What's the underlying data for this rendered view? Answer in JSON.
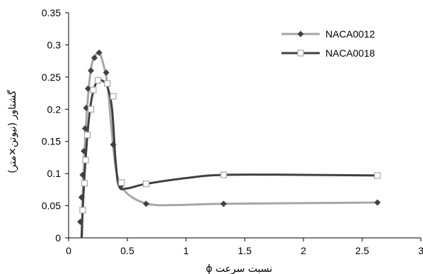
{
  "chart_data": {
    "type": "line",
    "title": "",
    "xlabel": "نسبت سرعت ϕ",
    "ylabel": "گشتاور (نیوتن×متر)",
    "xlim": [
      0,
      3
    ],
    "ylim": [
      0,
      0.35
    ],
    "x_ticks": [
      "0",
      "0.5",
      "1",
      "1.5",
      "2",
      "2.5",
      "3"
    ],
    "y_ticks": [
      "0",
      "0.05",
      "0.1",
      "0.15",
      "0.2",
      "0.25",
      "0.3",
      "0.35"
    ],
    "grid": false,
    "legend_position": "top-right",
    "series": [
      {
        "name": "NACA0012",
        "color": "#a6a6a6",
        "marker": "filled-diamond",
        "marker_color": "#404040",
        "points": [
          [
            0.1,
            0.025
          ],
          [
            0.11,
            0.063
          ],
          [
            0.12,
            0.098
          ],
          [
            0.13,
            0.135
          ],
          [
            0.14,
            0.17
          ],
          [
            0.15,
            0.202
          ],
          [
            0.165,
            0.232
          ],
          [
            0.19,
            0.26
          ],
          [
            0.22,
            0.28
          ],
          [
            0.26,
            0.288
          ],
          [
            0.32,
            0.257
          ],
          [
            0.38,
            0.145
          ],
          [
            0.45,
            0.082
          ],
          [
            0.66,
            0.053
          ],
          [
            1.32,
            0.053
          ],
          [
            2.63,
            0.055
          ]
        ],
        "curve": [
          [
            0.115,
            0.0
          ],
          [
            0.12,
            0.06
          ],
          [
            0.14,
            0.15
          ],
          [
            0.17,
            0.23
          ],
          [
            0.2,
            0.272
          ],
          [
            0.25,
            0.288
          ],
          [
            0.28,
            0.28
          ],
          [
            0.33,
            0.24
          ],
          [
            0.36,
            0.18
          ],
          [
            0.4,
            0.11
          ],
          [
            0.45,
            0.08
          ],
          [
            0.55,
            0.062
          ],
          [
            0.7,
            0.052
          ],
          [
            0.9,
            0.051
          ],
          [
            1.3,
            0.053
          ],
          [
            2.0,
            0.054
          ],
          [
            2.63,
            0.055
          ]
        ]
      },
      {
        "name": "NACA0018",
        "color": "#404040",
        "marker": "open-square",
        "marker_color": "#a6a6a6",
        "points": [
          [
            0.12,
            0.043
          ],
          [
            0.135,
            0.085
          ],
          [
            0.145,
            0.121
          ],
          [
            0.16,
            0.16
          ],
          [
            0.19,
            0.2
          ],
          [
            0.21,
            0.23
          ],
          [
            0.25,
            0.245
          ],
          [
            0.33,
            0.24
          ],
          [
            0.38,
            0.22
          ],
          [
            0.45,
            0.086
          ],
          [
            0.66,
            0.084
          ],
          [
            1.32,
            0.098
          ],
          [
            2.63,
            0.097
          ]
        ],
        "curve": [
          [
            0.11,
            0.0
          ],
          [
            0.12,
            0.045
          ],
          [
            0.14,
            0.11
          ],
          [
            0.17,
            0.18
          ],
          [
            0.2,
            0.22
          ],
          [
            0.24,
            0.243
          ],
          [
            0.28,
            0.245
          ],
          [
            0.33,
            0.235
          ],
          [
            0.37,
            0.2
          ],
          [
            0.4,
            0.12
          ],
          [
            0.43,
            0.08
          ],
          [
            0.5,
            0.077
          ],
          [
            0.66,
            0.084
          ],
          [
            1.0,
            0.093
          ],
          [
            1.32,
            0.098
          ],
          [
            2.0,
            0.098
          ],
          [
            2.63,
            0.097
          ]
        ]
      }
    ]
  }
}
